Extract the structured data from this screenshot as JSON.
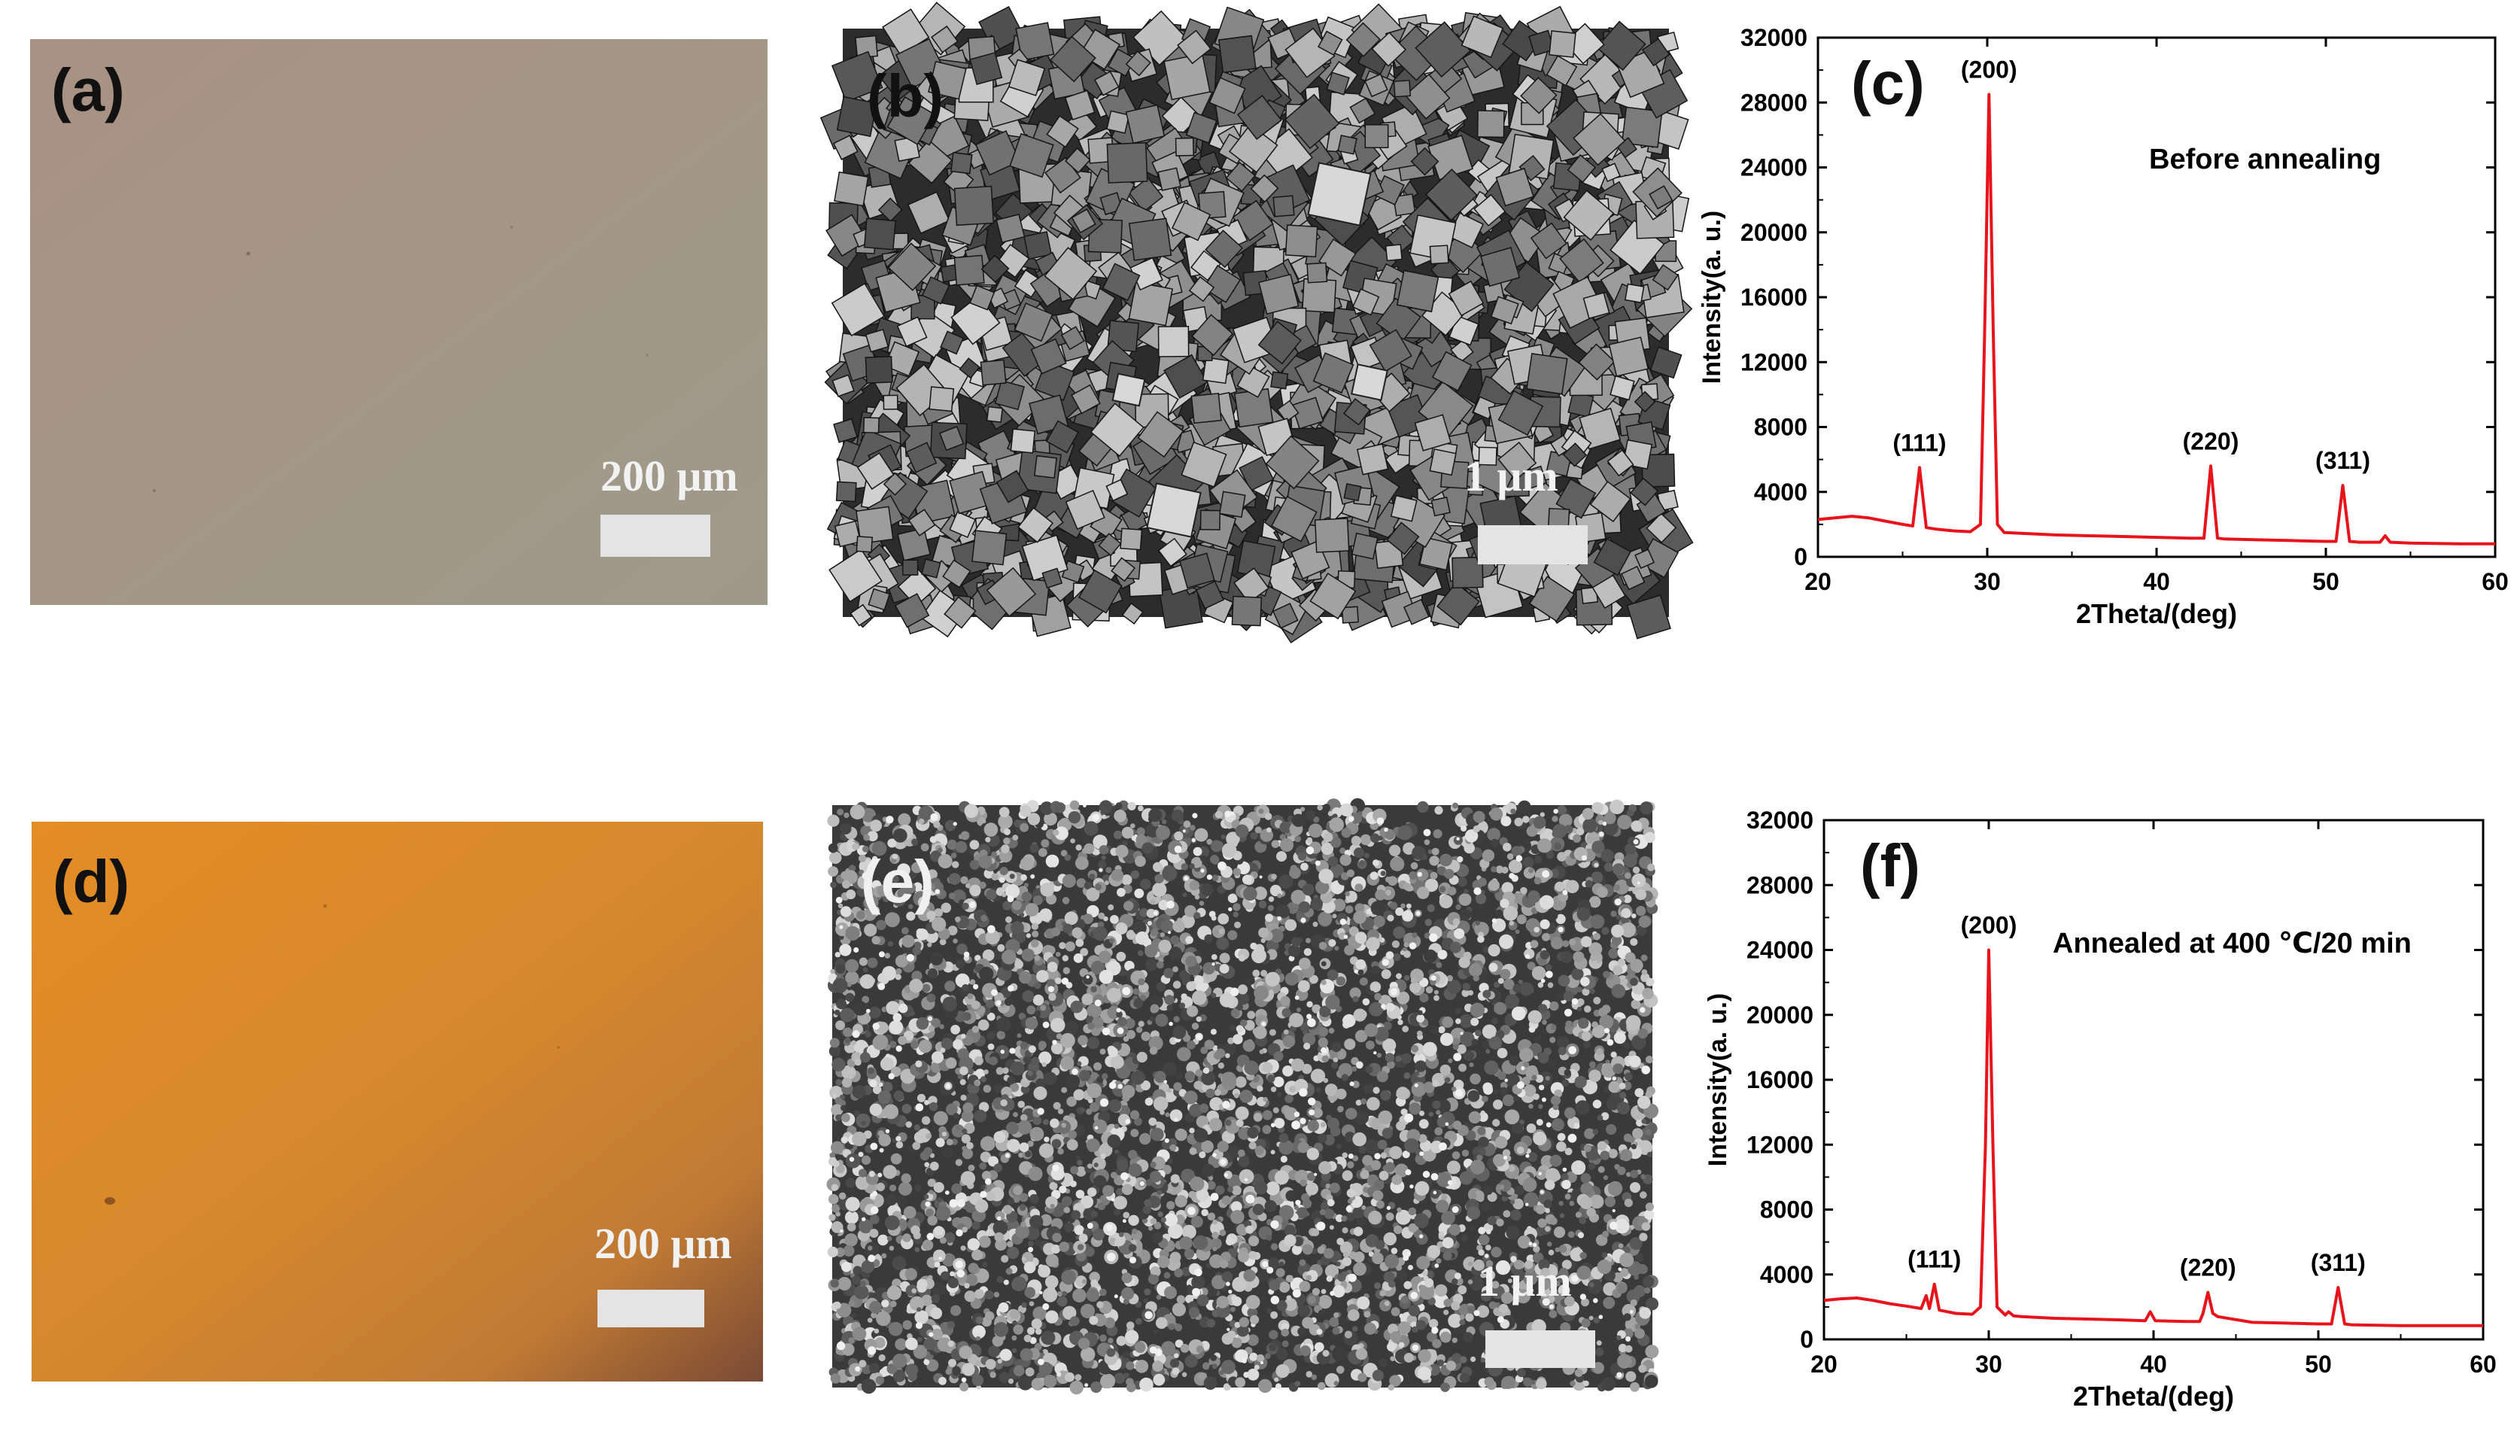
{
  "panels": {
    "a": {
      "label": "(a)",
      "scale_text": "200 μm",
      "image": "optical-micrograph-pink-film"
    },
    "b": {
      "label": "(b)",
      "scale_text": "1 μm",
      "image": "sem-cubic-grains"
    },
    "c": {
      "label": "(c)"
    },
    "d": {
      "label": "(d)",
      "scale_text": "200 μm",
      "image": "optical-micrograph-orange-film"
    },
    "e": {
      "label": "(e)",
      "scale_text": "1 μm",
      "image": "sem-fine-grains"
    },
    "f": {
      "label": "(f)"
    }
  },
  "colors": {
    "panel_a": "#a8968a",
    "panel_d": "#d68a2e",
    "xrd_line": "#e8141c"
  },
  "chart_data": [
    {
      "type": "line",
      "panel": "c",
      "annotation": "Before annealing",
      "xlabel": "2Theta/(deg)",
      "ylabel": "Intensity(a. u.)",
      "xlim": [
        20,
        60
      ],
      "ylim": [
        0,
        32000
      ],
      "xticks": [
        20,
        30,
        40,
        50,
        60
      ],
      "yticks": [
        0,
        4000,
        8000,
        12000,
        16000,
        20000,
        24000,
        28000,
        32000
      ],
      "peak_labels": [
        {
          "text": "(111)",
          "x": 26.0,
          "y": 5500
        },
        {
          "text": "(200)",
          "x": 30.1,
          "y": 28500
        },
        {
          "text": "(220)",
          "x": 43.2,
          "y": 5600
        },
        {
          "text": "(311)",
          "x": 51.0,
          "y": 4400
        }
      ],
      "series": [
        {
          "x": [
            20,
            21,
            22,
            23,
            24,
            25,
            25.6,
            26.0,
            26.4,
            27,
            28,
            29,
            29.6,
            29.85,
            30.1,
            30.35,
            30.6,
            31,
            32,
            34,
            36,
            38,
            40,
            42,
            42.8,
            43.2,
            43.6,
            44,
            46,
            48,
            50,
            50.6,
            51.0,
            51.4,
            52,
            53.2,
            53.5,
            53.8,
            55,
            58,
            60
          ],
          "y": [
            2300,
            2400,
            2500,
            2400,
            2200,
            2000,
            1900,
            5500,
            1800,
            1700,
            1600,
            1550,
            2000,
            14000,
            28500,
            14000,
            2000,
            1500,
            1450,
            1350,
            1300,
            1250,
            1200,
            1150,
            1150,
            5600,
            1150,
            1100,
            1050,
            1000,
            950,
            950,
            4400,
            950,
            900,
            900,
            1300,
            900,
            850,
            800,
            800
          ]
        }
      ]
    },
    {
      "type": "line",
      "panel": "f",
      "annotation": "Annealed at 400 ℃/20 min",
      "xlabel": "2Theta/(deg)",
      "ylabel": "Intensity(a. u.)",
      "xlim": [
        20,
        60
      ],
      "ylim": [
        0,
        32000
      ],
      "xticks": [
        20,
        30,
        40,
        50,
        60
      ],
      "yticks": [
        0,
        4000,
        8000,
        12000,
        16000,
        20000,
        24000,
        28000,
        32000
      ],
      "peak_labels": [
        {
          "text": "(111)",
          "x": 26.7,
          "y": 3400
        },
        {
          "text": "(200)",
          "x": 30.0,
          "y": 24000
        },
        {
          "text": "(220)",
          "x": 43.3,
          "y": 2900
        },
        {
          "text": "(311)",
          "x": 51.2,
          "y": 3200
        }
      ],
      "series": [
        {
          "x": [
            20,
            21,
            22,
            23,
            24,
            25,
            25.9,
            26.2,
            26.4,
            26.7,
            27.0,
            27.5,
            28,
            29,
            29.5,
            29.8,
            30.0,
            30.25,
            30.5,
            31,
            31.2,
            31.5,
            32,
            34,
            36,
            38,
            39.5,
            39.8,
            40.1,
            42,
            42.8,
            43.0,
            43.3,
            43.6,
            43.9,
            46,
            48,
            50,
            50.8,
            51.2,
            51.6,
            52,
            55,
            58,
            60
          ],
          "y": [
            2400,
            2500,
            2550,
            2400,
            2200,
            2050,
            1900,
            2700,
            1900,
            3400,
            1800,
            1700,
            1600,
            1550,
            2000,
            12000,
            24000,
            12000,
            2000,
            1500,
            1700,
            1450,
            1400,
            1300,
            1250,
            1200,
            1150,
            1700,
            1150,
            1100,
            1100,
            1600,
            2900,
            1600,
            1400,
            1050,
            1000,
            950,
            950,
            3200,
            950,
            900,
            850,
            850,
            850
          ]
        }
      ]
    }
  ]
}
